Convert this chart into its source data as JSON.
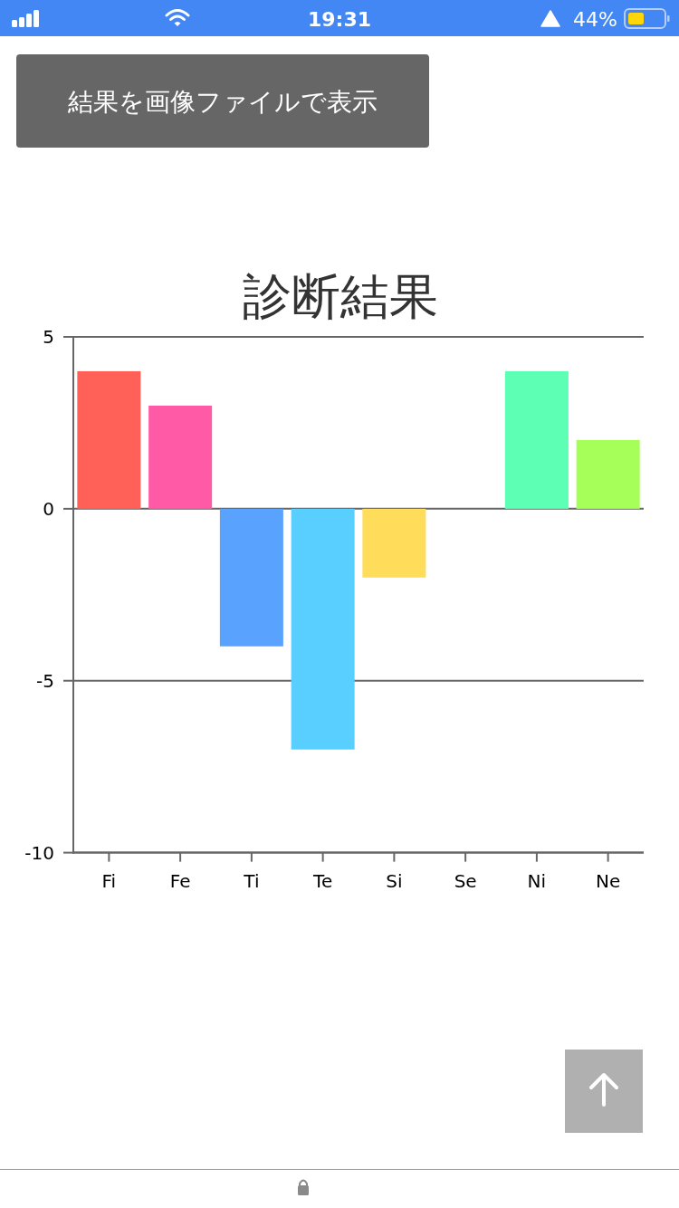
{
  "chart_data": {
    "type": "bar",
    "title": "診断結果",
    "categories": [
      "Fi",
      "Fe",
      "Ti",
      "Te",
      "Si",
      "Se",
      "Ni",
      "Ne"
    ],
    "values": [
      4,
      3,
      -4,
      -7,
      -2,
      0,
      4,
      2
    ],
    "colors": [
      "#ff6159",
      "#ff5aa5",
      "#59a3ff",
      "#59cfff",
      "#ffdc59",
      "#ffa459",
      "#5cffb3",
      "#a6ff59"
    ],
    "ylim": [
      -10,
      5
    ],
    "yticks": [
      -10,
      -5,
      0,
      5
    ],
    "grid": "y",
    "annotations": [
      "19:31",
      "44%",
      "結果を画像ファイルで表示"
    ]
  }
}
